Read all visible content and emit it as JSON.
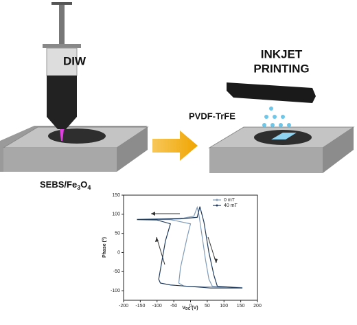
{
  "labels": {
    "diw": "DIW",
    "inkjet_line1": "INKJET",
    "inkjet_line2": "PRINTING",
    "pvdf": "PVDF-TrFE",
    "sebs": {
      "main": "SEBS/Fe",
      "sub1": "3",
      "mid": "O",
      "sub2": "4"
    }
  },
  "plot": {
    "type": "line",
    "xlabel": {
      "main": "V",
      "sub": "DC",
      "unit": " (V)"
    },
    "ylabel": "Phase (°)",
    "xlim": [
      -200,
      200
    ],
    "xticks": [
      -200,
      -150,
      -100,
      -50,
      0,
      50,
      100,
      150,
      200
    ],
    "ylim": [
      -125,
      150
    ],
    "yticks": [
      150,
      100,
      50,
      0,
      -50,
      -100
    ],
    "series": [
      {
        "name": "0 mT",
        "color": "#7f9bb8",
        "x": [
          -160,
          -100,
          -20,
          10,
          20,
          25,
          35,
          45,
          55,
          65,
          100,
          155,
          100,
          -20,
          -35,
          -30,
          -20,
          -10,
          0,
          -60,
          -160
        ],
        "values": [
          87,
          88,
          90,
          95,
          118,
          100,
          40,
          -20,
          -70,
          -88,
          -90,
          -92,
          -91,
          -88,
          -80,
          -40,
          0,
          40,
          75,
          86,
          87
        ]
      },
      {
        "name": "40 mT",
        "color": "#1f3a5c",
        "x": [
          -160,
          -100,
          -30,
          20,
          28,
          40,
          55,
          70,
          80,
          155,
          60,
          -60,
          -90,
          -95,
          -85,
          -75,
          -60,
          -100,
          -160
        ],
        "values": [
          86,
          87,
          88,
          92,
          120,
          80,
          0,
          -60,
          -88,
          -93,
          -93,
          -85,
          -80,
          -70,
          -20,
          30,
          75,
          85,
          86
        ]
      }
    ]
  }
}
